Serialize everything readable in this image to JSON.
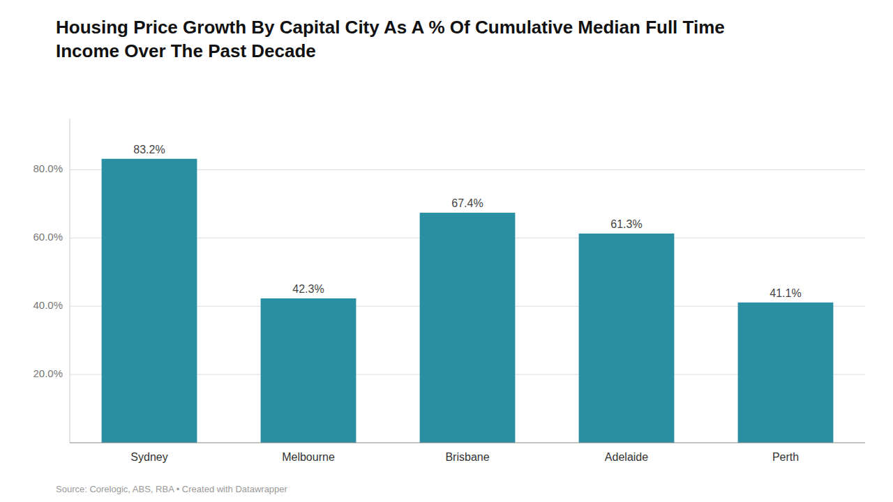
{
  "chart_data": {
    "type": "bar",
    "title": "Housing Price Growth By Capital City As A % Of Cumulative Median Full Time\nIncome Over The Past Decade",
    "categories": [
      "Sydney",
      "Melbourne",
      "Brisbane",
      "Adelaide",
      "Perth"
    ],
    "values": [
      83.2,
      42.3,
      67.4,
      61.3,
      41.1
    ],
    "value_labels": [
      "83.2%",
      "42.3%",
      "67.4%",
      "61.3%",
      "41.1%"
    ],
    "data_labels": true,
    "color": "#2b8fa3",
    "ylim": [
      0,
      95
    ],
    "yticks": [
      {
        "value": 20.0,
        "label": "20.0%"
      },
      {
        "value": 40.0,
        "label": "40.0%"
      },
      {
        "value": 60.0,
        "label": "60.0%"
      },
      {
        "value": 80.0,
        "label": "80.0%"
      }
    ],
    "grid": true,
    "annotations": [
      "Source: Corelogic, ABS, RBA • Created with Datawrapper"
    ]
  }
}
